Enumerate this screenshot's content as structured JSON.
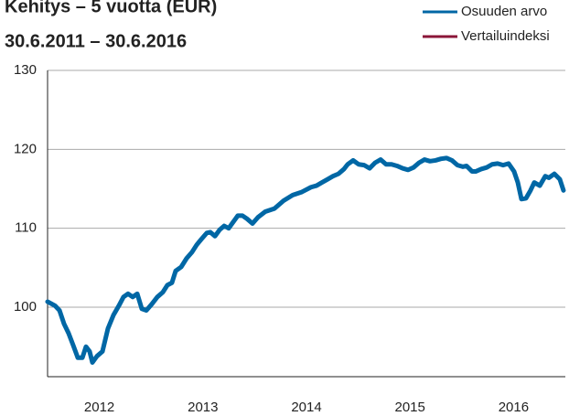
{
  "chart_data": {
    "type": "line",
    "title": "Kehitys – 5 vuotta (EUR)",
    "subtitle": "30.6.2011 – 30.6.2016",
    "x": [
      2011.5,
      2011.571,
      2011.615,
      2011.659,
      2011.703,
      2011.747,
      2011.792,
      2011.836,
      2011.871,
      2011.906,
      2011.933,
      2011.977,
      2012.03,
      2012.083,
      2012.136,
      2012.189,
      2012.233,
      2012.277,
      2012.322,
      2012.366,
      2012.41,
      2012.454,
      2012.507,
      2012.56,
      2012.613,
      2012.657,
      2012.701,
      2012.737,
      2012.79,
      2012.843,
      2012.896,
      2012.94,
      2012.984,
      2013.037,
      2013.072,
      2013.117,
      2013.161,
      2013.205,
      2013.249,
      2013.293,
      2013.337,
      2013.382,
      2013.426,
      2013.479,
      2013.532,
      2013.602,
      2013.691,
      2013.779,
      2013.867,
      2013.956,
      2014.044,
      2014.097,
      2014.15,
      2014.203,
      2014.256,
      2014.309,
      2014.362,
      2014.398,
      2014.451,
      2014.504,
      2014.557,
      2014.61,
      2014.663,
      2014.716,
      2014.769,
      2014.822,
      2014.875,
      2014.928,
      2014.981,
      2015.034,
      2015.087,
      2015.14,
      2015.193,
      2015.246,
      2015.299,
      2015.352,
      2015.405,
      2015.458,
      2015.511,
      2015.546,
      2015.599,
      2015.634,
      2015.687,
      2015.74,
      2015.793,
      2015.846,
      2015.899,
      2015.952,
      2016.005,
      2016.041,
      2016.076,
      2016.12,
      2016.164,
      2016.2,
      2016.253,
      2016.306,
      2016.341,
      2016.394,
      2016.447,
      2016.482
    ],
    "series": [
      {
        "name": "Osuuden arvo",
        "color": "#0067a5",
        "values": [
          100.7,
          100.2,
          99.6,
          97.9,
          96.7,
          95.2,
          93.6,
          93.6,
          95.0,
          94.4,
          93.0,
          93.8,
          94.4,
          97.3,
          99.0,
          100.2,
          101.3,
          101.7,
          101.3,
          101.7,
          99.8,
          99.6,
          100.4,
          101.3,
          101.9,
          102.8,
          103.1,
          104.6,
          105.1,
          106.2,
          107.0,
          107.9,
          108.6,
          109.4,
          109.5,
          109.0,
          109.8,
          110.3,
          110.0,
          110.8,
          111.6,
          111.6,
          111.2,
          110.6,
          111.4,
          112.1,
          112.5,
          113.5,
          114.2,
          114.6,
          115.2,
          115.4,
          115.8,
          116.2,
          116.6,
          116.9,
          117.5,
          118.1,
          118.6,
          118.1,
          118.0,
          117.6,
          118.3,
          118.7,
          118.1,
          118.1,
          117.9,
          117.6,
          117.4,
          117.7,
          118.3,
          118.7,
          118.5,
          118.6,
          118.8,
          118.9,
          118.6,
          118.0,
          117.8,
          117.9,
          117.2,
          117.2,
          117.5,
          117.7,
          118.1,
          118.2,
          118.0,
          118.2,
          117.2,
          115.8,
          113.7,
          113.8,
          114.8,
          115.8,
          115.4,
          116.6,
          116.4,
          116.9,
          116.2,
          114.8
        ]
      },
      {
        "name": "Vertailuindeksi",
        "color": "#8b1538",
        "values": [
          null,
          null,
          null,
          null,
          null,
          null,
          null,
          null,
          null,
          null,
          null,
          null,
          null,
          null,
          null,
          null,
          null,
          null,
          null,
          null,
          null,
          null,
          null,
          null,
          null,
          null,
          null,
          null,
          null,
          null,
          null,
          null,
          null,
          null,
          null,
          null,
          null,
          null,
          null,
          null,
          null,
          null,
          null,
          null,
          null,
          null,
          null,
          null,
          null,
          null,
          null,
          null,
          null,
          null,
          null,
          null,
          null,
          null,
          null,
          null,
          null,
          null,
          null,
          null,
          null,
          null,
          null,
          null,
          null,
          null,
          null,
          null,
          null,
          null,
          null,
          null,
          null,
          null,
          null,
          null,
          null,
          null,
          null,
          null,
          null,
          null,
          null,
          null,
          null,
          null,
          null,
          null,
          null,
          null,
          null,
          null,
          null,
          null,
          null,
          null
        ]
      }
    ],
    "xlim": [
      2011.5,
      2016.5
    ],
    "xticks": [
      2012,
      2013,
      2014,
      2015,
      2016
    ],
    "ylim": [
      91.2,
      130
    ],
    "yticks": [
      100,
      110,
      120,
      130
    ],
    "grid": true
  }
}
